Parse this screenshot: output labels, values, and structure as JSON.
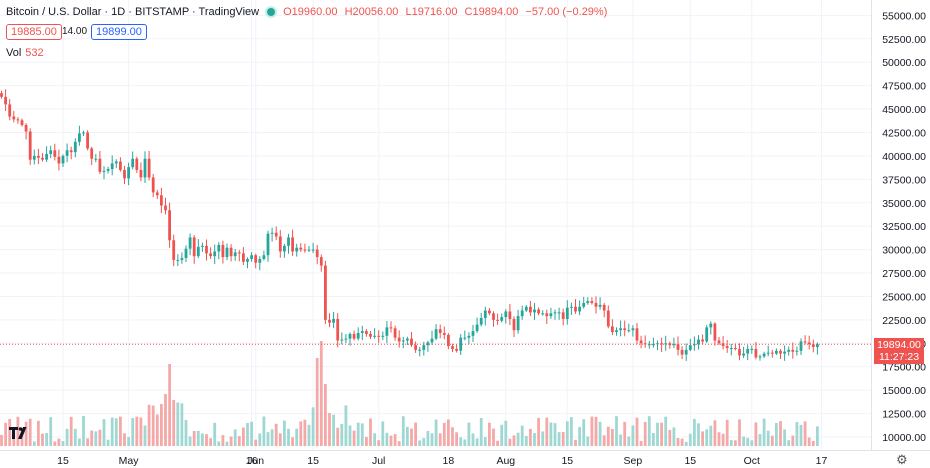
{
  "header": {
    "symbol": "Bitcoin / U.S. Dollar · 1D · BITSTAMP · TradingView",
    "o": "O19960.00",
    "h": "H20056.00",
    "l": "L19716.00",
    "c": "C19894.00",
    "chg": "−57.00 (−0.29%)"
  },
  "prices": {
    "bid": "19885.00",
    "spread": "14.00",
    "ask": "19899.00"
  },
  "volume": {
    "label": "Vol",
    "value": "532"
  },
  "last_price": {
    "value": "19894.00",
    "countdown": "11:27:23"
  },
  "colors": {
    "up": "#26a69a",
    "down": "#ef5350",
    "up_vol": "#9fd8d2",
    "down_vol": "#f4a9a8",
    "grid": "#f0f3fa"
  },
  "icons": {
    "logo": "tradingview-logo-icon",
    "settings": "gear-icon",
    "status": "market-open-dot-icon"
  },
  "chart_data": {
    "type": "candlestick",
    "ylim": [
      8750,
      56500
    ],
    "y_ticks": [
      10000,
      12500,
      15000,
      17500,
      20000,
      22500,
      25000,
      27500,
      30000,
      32500,
      35000,
      37500,
      40000,
      42500,
      45000,
      47500,
      50000,
      52500,
      55000
    ],
    "y_tick_labels": [
      "10000.00",
      "12500.00",
      "15000.00",
      "17500.00",
      "20000.00",
      "22500.00",
      "25000.00",
      "27500.00",
      "30000.00",
      "32500.00",
      "35000.00",
      "37500.00",
      "40000.00",
      "42500.00",
      "45000.00",
      "47500.00",
      "50000.00",
      "52500.00",
      "55000.00"
    ],
    "x_tick_labels": [
      "15",
      "May",
      "16",
      "Jun",
      "15",
      "Jul",
      "18",
      "Aug",
      "15",
      "Sep",
      "15",
      "Oct",
      "17"
    ],
    "x_tick_days": [
      15,
      31,
      61,
      62,
      76,
      92,
      109,
      123,
      138,
      154,
      168,
      183,
      200
    ],
    "start_date": "2022-04-01",
    "closes": [
      46300,
      45500,
      44200,
      43900,
      43800,
      43300,
      42600,
      39600,
      40000,
      39800,
      39600,
      40200,
      40600,
      39900,
      39200,
      40000,
      40600,
      40400,
      41500,
      42400,
      42500,
      40800,
      39700,
      39700,
      38300,
      38400,
      38600,
      39200,
      39400,
      38500,
      37600,
      38800,
      39700,
      38500,
      37700,
      39700,
      37700,
      36100,
      35800,
      34700,
      34200,
      31000,
      28900,
      28900,
      29100,
      30100,
      31300,
      29300,
      30300,
      30400,
      29600,
      29300,
      29800,
      30500,
      29200,
      30200,
      29300,
      29700,
      29600,
      28700,
      29000,
      29400,
      28600,
      29000,
      29400,
      31700,
      31800,
      31400,
      29800,
      30400,
      31300,
      29800,
      30200,
      30000,
      29900,
      30000,
      30000,
      29200,
      28300,
      22500,
      22200,
      22600,
      20300,
      20400,
      20500,
      21000,
      20500,
      21100,
      21300,
      21000,
      20700,
      20800,
      20700,
      20800,
      21700,
      21600,
      20600,
      20200,
      20300,
      20500,
      19800,
      19300,
      19300,
      19800,
      20100,
      20500,
      21500,
      21100,
      20900,
      19700,
      19400,
      19200,
      20600,
      20600,
      20800,
      21300,
      22000,
      22700,
      23500,
      23200,
      22500,
      22400,
      22800,
      23400,
      22600,
      21400,
      22900,
      23500,
      23900,
      23300,
      23600,
      23200,
      23200,
      22900,
      23200,
      23300,
      23300,
      22600,
      23800,
      23900,
      23400,
      23900,
      24300,
      24500,
      24300,
      23900,
      24100,
      23500,
      21800,
      21200,
      21400,
      21600,
      21400,
      21400,
      21600,
      20300,
      20000,
      19900,
      19900,
      19900,
      20000,
      19900,
      20000,
      19800,
      19900,
      19300,
      18800,
      19300,
      19800,
      19900,
      20400,
      20200,
      21700,
      22100,
      20300,
      20000,
      19700,
      19500,
      19500,
      19400,
      18700,
      18900,
      19400,
      19400,
      18500,
      18600,
      18900,
      19000,
      18900,
      19200,
      18900,
      19100,
      19300,
      19100,
      19200,
      20200,
      20100,
      19900,
      19600,
      19900
    ]
  }
}
